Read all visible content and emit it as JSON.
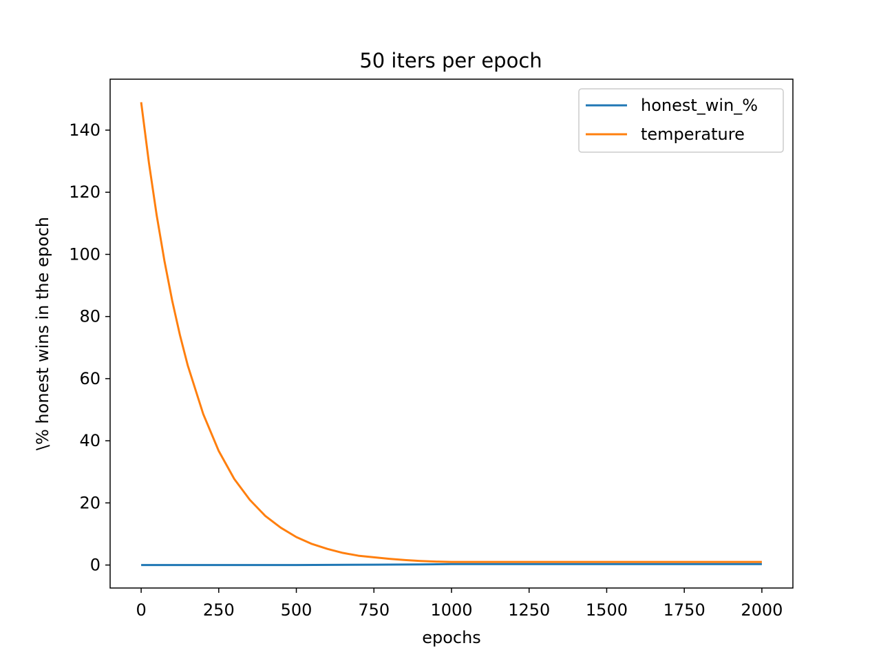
{
  "chart_data": {
    "type": "line",
    "title": "50 iters per epoch",
    "xlabel": "epochs",
    "ylabel": "\\% honest wins in the epoch",
    "xlim": [
      -100,
      2100
    ],
    "ylim": [
      -7.4,
      156.4
    ],
    "xticks": [
      0,
      250,
      500,
      750,
      1000,
      1250,
      1500,
      1750,
      2000
    ],
    "xtick_labels": [
      "0",
      "250",
      "500",
      "750",
      "1000",
      "1250",
      "1500",
      "1750",
      "2000"
    ],
    "yticks": [
      0,
      20,
      40,
      60,
      80,
      100,
      120,
      140
    ],
    "ytick_labels": [
      "0",
      "20",
      "40",
      "60",
      "80",
      "100",
      "120",
      "140"
    ],
    "grid": false,
    "legend_position": "top-right",
    "series": [
      {
        "name": "honest_win_%",
        "color": "#1f77b4",
        "x": [
          0,
          250,
          500,
          750,
          900,
          1000,
          1250,
          1500,
          1750,
          2000
        ],
        "y": [
          0,
          0,
          0,
          0.1,
          0.2,
          0.3,
          0.3,
          0.3,
          0.3,
          0.3
        ]
      },
      {
        "name": "temperature",
        "color": "#ff7f0e",
        "x": [
          0,
          25,
          50,
          75,
          100,
          125,
          150,
          200,
          250,
          300,
          350,
          400,
          450,
          500,
          550,
          600,
          650,
          700,
          750,
          800,
          850,
          900,
          950,
          1000,
          1025,
          1250,
          1500,
          1750,
          2000
        ],
        "y": [
          149,
          129.5,
          112.6,
          97.9,
          85.1,
          74.0,
          64.3,
          48.6,
          36.7,
          27.7,
          21.0,
          15.8,
          12.0,
          9.0,
          6.8,
          5.2,
          3.9,
          3.0,
          2.5,
          2.0,
          1.6,
          1.3,
          1.1,
          1.0,
          1.0,
          1.0,
          1.0,
          1.0,
          1.0
        ]
      }
    ]
  }
}
